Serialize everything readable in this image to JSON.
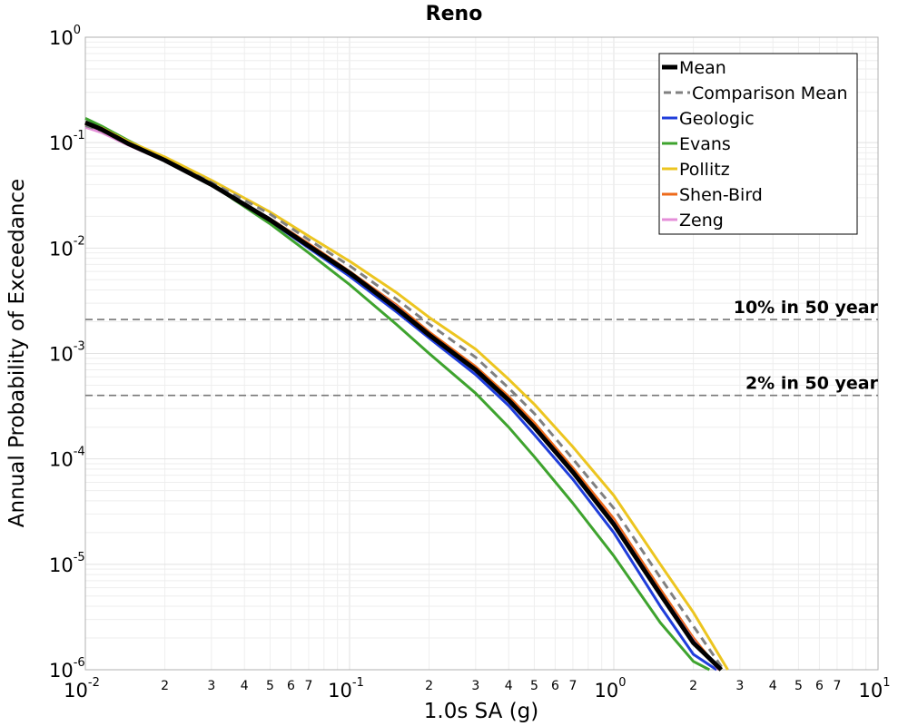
{
  "chart_data": {
    "type": "line",
    "title": "Reno",
    "xlabel": "1.0s SA (g)",
    "ylabel": "Annual Probability of Exceedance",
    "xscale": "log",
    "yscale": "log",
    "xlim": [
      0.01,
      10
    ],
    "ylim": [
      1e-06,
      1
    ],
    "grid": true,
    "legend_position": "top-right",
    "x_tick_labels": [
      {
        "value": 0.01,
        "base": "10",
        "exp": "-2"
      },
      {
        "value": 0.1,
        "base": "10",
        "exp": "-1"
      },
      {
        "value": 1,
        "base": "10",
        "exp": "0"
      },
      {
        "value": 10,
        "base": "10",
        "exp": "1"
      }
    ],
    "x_minor_labels": [
      "2",
      "3",
      "4",
      "5",
      "6",
      "7"
    ],
    "y_tick_labels": [
      {
        "value": 1,
        "base": "10",
        "exp": "0"
      },
      {
        "value": 0.1,
        "base": "10",
        "exp": "-1"
      },
      {
        "value": 0.01,
        "base": "10",
        "exp": "-2"
      },
      {
        "value": 0.001,
        "base": "10",
        "exp": "-3"
      },
      {
        "value": 0.0001,
        "base": "10",
        "exp": "-4"
      },
      {
        "value": 1e-05,
        "base": "10",
        "exp": "-5"
      },
      {
        "value": 1e-06,
        "base": "10",
        "exp": "-6"
      }
    ],
    "reference_lines": [
      {
        "label": "10% in 50 year",
        "y": 0.0021,
        "color": "#777777"
      },
      {
        "label": "2% in 50 year",
        "y": 0.0004,
        "color": "#777777"
      }
    ],
    "series": [
      {
        "name": "Geologic",
        "color": "#1f3ddb",
        "width": 3,
        "dash": "",
        "x": [
          0.01,
          0.0115,
          0.0145,
          0.02,
          0.03,
          0.05,
          0.07,
          0.1,
          0.15,
          0.2,
          0.3,
          0.4,
          0.5,
          0.7,
          1.0,
          1.5,
          2.0,
          2.45
        ],
        "y": [
          0.155,
          0.134,
          0.098,
          0.068,
          0.04,
          0.018,
          0.01,
          0.0054,
          0.0025,
          0.0014,
          0.00063,
          0.00032,
          0.00017,
          6.4e-05,
          2e-05,
          4e-06,
          1.4e-06,
          1e-06
        ]
      },
      {
        "name": "Evans",
        "color": "#3ea32e",
        "width": 3,
        "dash": "",
        "x": [
          0.01,
          0.0115,
          0.0145,
          0.02,
          0.03,
          0.05,
          0.07,
          0.1,
          0.15,
          0.2,
          0.3,
          0.4,
          0.5,
          0.7,
          1.0,
          1.5,
          2.0,
          2.3
        ],
        "y": [
          0.17,
          0.144,
          0.105,
          0.07,
          0.04,
          0.017,
          0.009,
          0.0045,
          0.0019,
          0.001,
          0.00042,
          0.0002,
          0.000105,
          3.8e-05,
          1.2e-05,
          2.8e-06,
          1.2e-06,
          1e-06
        ]
      },
      {
        "name": "Pollitz",
        "color": "#ecc520",
        "width": 3,
        "dash": "",
        "x": [
          0.01,
          0.0115,
          0.0145,
          0.02,
          0.03,
          0.05,
          0.07,
          0.1,
          0.15,
          0.2,
          0.3,
          0.4,
          0.5,
          0.7,
          1.0,
          1.5,
          2.0,
          2.7
        ],
        "y": [
          0.155,
          0.138,
          0.103,
          0.073,
          0.044,
          0.022,
          0.013,
          0.0075,
          0.0038,
          0.0022,
          0.0011,
          0.00057,
          0.00033,
          0.00013,
          4.5e-05,
          1e-05,
          3.5e-06,
          1e-06
        ]
      },
      {
        "name": "Shen-Bird",
        "color": "#ee6a1a",
        "width": 3,
        "dash": "",
        "x": [
          0.01,
          0.0115,
          0.0145,
          0.02,
          0.03,
          0.05,
          0.07,
          0.1,
          0.15,
          0.2,
          0.3,
          0.4,
          0.5,
          0.7,
          1.0,
          1.5,
          2.0,
          2.5
        ],
        "y": [
          0.15,
          0.132,
          0.097,
          0.068,
          0.04,
          0.019,
          0.011,
          0.006,
          0.0029,
          0.0016,
          0.00075,
          0.00039,
          0.00022,
          8.2e-05,
          2.7e-05,
          5.8e-06,
          2e-06,
          1e-06
        ]
      },
      {
        "name": "Zeng",
        "color": "#e48ed8",
        "width": 3,
        "dash": "",
        "x": [
          0.01,
          0.0115,
          0.0145,
          0.02,
          0.03,
          0.05,
          0.07,
          0.1,
          0.15,
          0.2,
          0.3,
          0.4,
          0.5,
          0.7,
          1.0,
          1.5,
          2.0,
          2.5
        ],
        "y": [
          0.14,
          0.125,
          0.095,
          0.067,
          0.04,
          0.019,
          0.0105,
          0.0059,
          0.0028,
          0.0015,
          0.0007,
          0.00036,
          0.0002,
          7.6e-05,
          2.5e-05,
          5.4e-06,
          1.9e-06,
          1e-06
        ]
      },
      {
        "name": "Comparison Mean",
        "color": "#808080",
        "width": 3,
        "dash": "9,6",
        "x": [
          0.01,
          0.0115,
          0.0145,
          0.02,
          0.03,
          0.05,
          0.07,
          0.1,
          0.15,
          0.2,
          0.3,
          0.4,
          0.5,
          0.7,
          1.0,
          1.5,
          2.0,
          2.6
        ],
        "y": [
          0.145,
          0.13,
          0.097,
          0.069,
          0.042,
          0.021,
          0.012,
          0.0068,
          0.0033,
          0.0019,
          0.00092,
          0.00047,
          0.00027,
          0.0001,
          3.4e-05,
          7.5e-06,
          2.6e-06,
          1e-06
        ]
      },
      {
        "name": "Mean",
        "color": "#000000",
        "width": 5,
        "dash": "",
        "x": [
          0.01,
          0.0115,
          0.0145,
          0.02,
          0.03,
          0.05,
          0.07,
          0.1,
          0.15,
          0.2,
          0.3,
          0.4,
          0.5,
          0.7,
          1.0,
          1.5,
          2.0,
          2.55
        ],
        "y": [
          0.155,
          0.134,
          0.098,
          0.068,
          0.04,
          0.0185,
          0.0105,
          0.0058,
          0.0027,
          0.0015,
          0.0007,
          0.00036,
          0.0002,
          7.5e-05,
          2.4e-05,
          5.2e-06,
          1.8e-06,
          1e-06
        ]
      }
    ],
    "legend": [
      {
        "label": "Mean",
        "color": "#000000",
        "width": 5,
        "dash": ""
      },
      {
        "label": "Comparison Mean",
        "color": "#808080",
        "width": 3,
        "dash": "9,6"
      },
      {
        "label": "Geologic",
        "color": "#1f3ddb",
        "width": 3,
        "dash": ""
      },
      {
        "label": "Evans",
        "color": "#3ea32e",
        "width": 3,
        "dash": ""
      },
      {
        "label": "Pollitz",
        "color": "#ecc520",
        "width": 3,
        "dash": ""
      },
      {
        "label": "Shen-Bird",
        "color": "#ee6a1a",
        "width": 3,
        "dash": ""
      },
      {
        "label": "Zeng",
        "color": "#e48ed8",
        "width": 3,
        "dash": ""
      }
    ]
  }
}
